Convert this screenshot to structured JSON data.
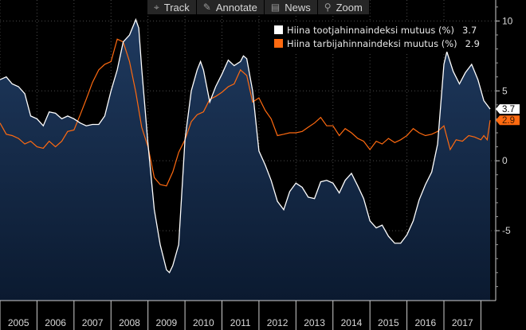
{
  "toolbar": {
    "items": [
      {
        "label": "Track",
        "icon": "crosshair-icon"
      },
      {
        "label": "Annotate",
        "icon": "pencil-icon"
      },
      {
        "label": "News",
        "icon": "news-icon"
      },
      {
        "label": "Zoom",
        "icon": "magnifier-icon"
      }
    ]
  },
  "legend": {
    "items": [
      {
        "label": "Hiina tootjahinnaindeksi mutuus (%)",
        "value": "3.7",
        "color": "#ffffff"
      },
      {
        "label": "Hiina tarbijahinnaindeksi muutus (%)",
        "value": "2.9",
        "color": "#ff6a10"
      }
    ]
  },
  "chart_data": {
    "type": "line",
    "title": "",
    "xlabel": "",
    "ylabel": "",
    "x_ticks": [
      "2005",
      "2006",
      "2007",
      "2008",
      "2009",
      "2010",
      "2011",
      "2012",
      "2013",
      "2014",
      "2015",
      "2016",
      "2017"
    ],
    "y_ticks": [
      "10",
      "5",
      "0",
      "-5"
    ],
    "ylim": [
      -10,
      11.5
    ],
    "xlim": [
      2005.0,
      2018.4
    ],
    "grid": true,
    "legend_position": "top-right",
    "colors": {
      "ppi_line": "#ffffff",
      "cpi_line": "#ff6a10",
      "area_top": "#1f3a5f",
      "area_bottom": "#0b1a30"
    },
    "series": [
      {
        "name": "Hiina tootjahinnaindeksi mutuus (%)",
        "last_label": "3.7",
        "points": [
          [
            2005.0,
            5.8
          ],
          [
            2005.17,
            6.0
          ],
          [
            2005.33,
            5.5
          ],
          [
            2005.5,
            5.3
          ],
          [
            2005.67,
            4.8
          ],
          [
            2005.83,
            3.2
          ],
          [
            2006.0,
            3.0
          ],
          [
            2006.17,
            2.5
          ],
          [
            2006.33,
            3.5
          ],
          [
            2006.5,
            3.4
          ],
          [
            2006.67,
            3.0
          ],
          [
            2006.83,
            3.2
          ],
          [
            2007.0,
            3.0
          ],
          [
            2007.17,
            2.7
          ],
          [
            2007.33,
            2.5
          ],
          [
            2007.5,
            2.6
          ],
          [
            2007.67,
            2.6
          ],
          [
            2007.83,
            3.2
          ],
          [
            2008.0,
            5.0
          ],
          [
            2008.17,
            6.5
          ],
          [
            2008.33,
            8.5
          ],
          [
            2008.5,
            9.0
          ],
          [
            2008.67,
            10.1
          ],
          [
            2008.75,
            9.5
          ],
          [
            2008.83,
            6.6
          ],
          [
            2009.0,
            1.2
          ],
          [
            2009.17,
            -3.5
          ],
          [
            2009.33,
            -6.0
          ],
          [
            2009.5,
            -7.8
          ],
          [
            2009.58,
            -8.0
          ],
          [
            2009.67,
            -7.5
          ],
          [
            2009.83,
            -6.0
          ],
          [
            2010.0,
            1.5
          ],
          [
            2010.17,
            5.0
          ],
          [
            2010.33,
            6.5
          ],
          [
            2010.42,
            7.1
          ],
          [
            2010.5,
            6.5
          ],
          [
            2010.67,
            4.2
          ],
          [
            2010.83,
            5.3
          ],
          [
            2011.0,
            6.2
          ],
          [
            2011.17,
            7.2
          ],
          [
            2011.33,
            6.8
          ],
          [
            2011.5,
            7.1
          ],
          [
            2011.58,
            7.5
          ],
          [
            2011.67,
            7.3
          ],
          [
            2011.83,
            5.0
          ],
          [
            2012.0,
            0.7
          ],
          [
            2012.17,
            -0.3
          ],
          [
            2012.33,
            -1.4
          ],
          [
            2012.5,
            -2.9
          ],
          [
            2012.67,
            -3.5
          ],
          [
            2012.83,
            -2.2
          ],
          [
            2013.0,
            -1.6
          ],
          [
            2013.17,
            -1.9
          ],
          [
            2013.33,
            -2.6
          ],
          [
            2013.5,
            -2.7
          ],
          [
            2013.67,
            -1.5
          ],
          [
            2013.83,
            -1.4
          ],
          [
            2014.0,
            -1.6
          ],
          [
            2014.17,
            -2.3
          ],
          [
            2014.33,
            -1.4
          ],
          [
            2014.5,
            -0.9
          ],
          [
            2014.67,
            -1.8
          ],
          [
            2014.83,
            -2.7
          ],
          [
            2015.0,
            -4.3
          ],
          [
            2015.17,
            -4.8
          ],
          [
            2015.33,
            -4.6
          ],
          [
            2015.5,
            -5.4
          ],
          [
            2015.67,
            -5.9
          ],
          [
            2015.83,
            -5.9
          ],
          [
            2016.0,
            -5.3
          ],
          [
            2016.17,
            -4.3
          ],
          [
            2016.33,
            -2.8
          ],
          [
            2016.5,
            -1.7
          ],
          [
            2016.67,
            -0.8
          ],
          [
            2016.83,
            1.2
          ],
          [
            2017.0,
            6.9
          ],
          [
            2017.08,
            7.8
          ],
          [
            2017.25,
            6.4
          ],
          [
            2017.42,
            5.5
          ],
          [
            2017.58,
            6.3
          ],
          [
            2017.75,
            6.9
          ],
          [
            2017.92,
            5.8
          ],
          [
            2018.08,
            4.3
          ],
          [
            2018.25,
            3.7
          ]
        ]
      },
      {
        "name": "Hiina tarbijahinnaindeksi muutus (%)",
        "last_label": "2.9",
        "points": [
          [
            2005.0,
            2.7
          ],
          [
            2005.17,
            1.9
          ],
          [
            2005.33,
            1.8
          ],
          [
            2005.5,
            1.6
          ],
          [
            2005.67,
            1.2
          ],
          [
            2005.83,
            1.4
          ],
          [
            2006.0,
            1.0
          ],
          [
            2006.17,
            0.9
          ],
          [
            2006.33,
            1.4
          ],
          [
            2006.5,
            1.0
          ],
          [
            2006.67,
            1.4
          ],
          [
            2006.83,
            2.1
          ],
          [
            2007.0,
            2.2
          ],
          [
            2007.17,
            3.3
          ],
          [
            2007.33,
            4.4
          ],
          [
            2007.5,
            5.6
          ],
          [
            2007.67,
            6.5
          ],
          [
            2007.83,
            6.9
          ],
          [
            2008.0,
            7.1
          ],
          [
            2008.17,
            8.7
          ],
          [
            2008.33,
            8.5
          ],
          [
            2008.5,
            7.1
          ],
          [
            2008.67,
            4.9
          ],
          [
            2008.83,
            2.4
          ],
          [
            2009.0,
            1.0
          ],
          [
            2009.17,
            -1.2
          ],
          [
            2009.33,
            -1.7
          ],
          [
            2009.5,
            -1.8
          ],
          [
            2009.67,
            -0.8
          ],
          [
            2009.83,
            0.6
          ],
          [
            2010.0,
            1.5
          ],
          [
            2010.17,
            2.8
          ],
          [
            2010.33,
            3.3
          ],
          [
            2010.5,
            3.5
          ],
          [
            2010.67,
            4.4
          ],
          [
            2010.83,
            4.6
          ],
          [
            2011.0,
            4.9
          ],
          [
            2011.17,
            5.3
          ],
          [
            2011.33,
            5.5
          ],
          [
            2011.5,
            6.5
          ],
          [
            2011.67,
            6.1
          ],
          [
            2011.83,
            4.2
          ],
          [
            2012.0,
            4.5
          ],
          [
            2012.17,
            3.6
          ],
          [
            2012.33,
            3.0
          ],
          [
            2012.5,
            1.8
          ],
          [
            2012.67,
            1.9
          ],
          [
            2012.83,
            2.0
          ],
          [
            2013.0,
            2.0
          ],
          [
            2013.17,
            2.1
          ],
          [
            2013.33,
            2.4
          ],
          [
            2013.5,
            2.7
          ],
          [
            2013.67,
            3.1
          ],
          [
            2013.83,
            2.5
          ],
          [
            2014.0,
            2.5
          ],
          [
            2014.17,
            1.8
          ],
          [
            2014.33,
            2.3
          ],
          [
            2014.5,
            2.0
          ],
          [
            2014.67,
            1.6
          ],
          [
            2014.83,
            1.4
          ],
          [
            2015.0,
            0.8
          ],
          [
            2015.17,
            1.4
          ],
          [
            2015.33,
            1.2
          ],
          [
            2015.5,
            1.6
          ],
          [
            2015.67,
            1.3
          ],
          [
            2015.83,
            1.5
          ],
          [
            2016.0,
            1.8
          ],
          [
            2016.17,
            2.3
          ],
          [
            2016.33,
            2.0
          ],
          [
            2016.5,
            1.8
          ],
          [
            2016.67,
            1.9
          ],
          [
            2016.83,
            2.1
          ],
          [
            2017.0,
            2.5
          ],
          [
            2017.17,
            0.8
          ],
          [
            2017.33,
            1.5
          ],
          [
            2017.5,
            1.4
          ],
          [
            2017.67,
            1.8
          ],
          [
            2017.83,
            1.7
          ],
          [
            2018.0,
            1.5
          ],
          [
            2018.08,
            1.8
          ],
          [
            2018.17,
            1.5
          ],
          [
            2018.25,
            2.9
          ]
        ]
      }
    ]
  }
}
